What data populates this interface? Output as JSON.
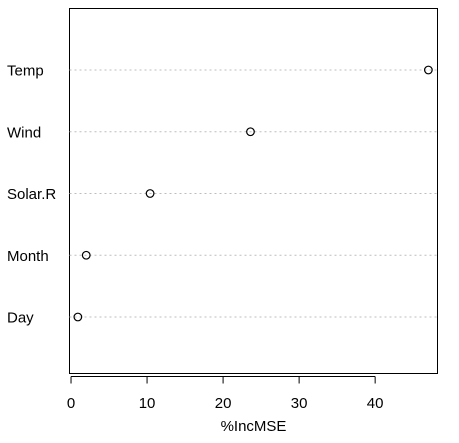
{
  "chart_data": {
    "type": "scatter",
    "title": "",
    "xlabel": "%IncMSE",
    "ylabel": "",
    "categories": [
      "Temp",
      "Wind",
      "Solar.R",
      "Month",
      "Day"
    ],
    "values": [
      47.0,
      23.6,
      10.4,
      2.0,
      0.9
    ],
    "xlim": [
      -0.2,
      48.2
    ],
    "xticks": [
      "0",
      "10",
      "20",
      "30",
      "40"
    ],
    "grid": "dotted horizontal lines per category",
    "legend": "none",
    "colors": {
      "points": "#000000",
      "gridlines": "#bebebe",
      "frame": "#000000"
    }
  }
}
